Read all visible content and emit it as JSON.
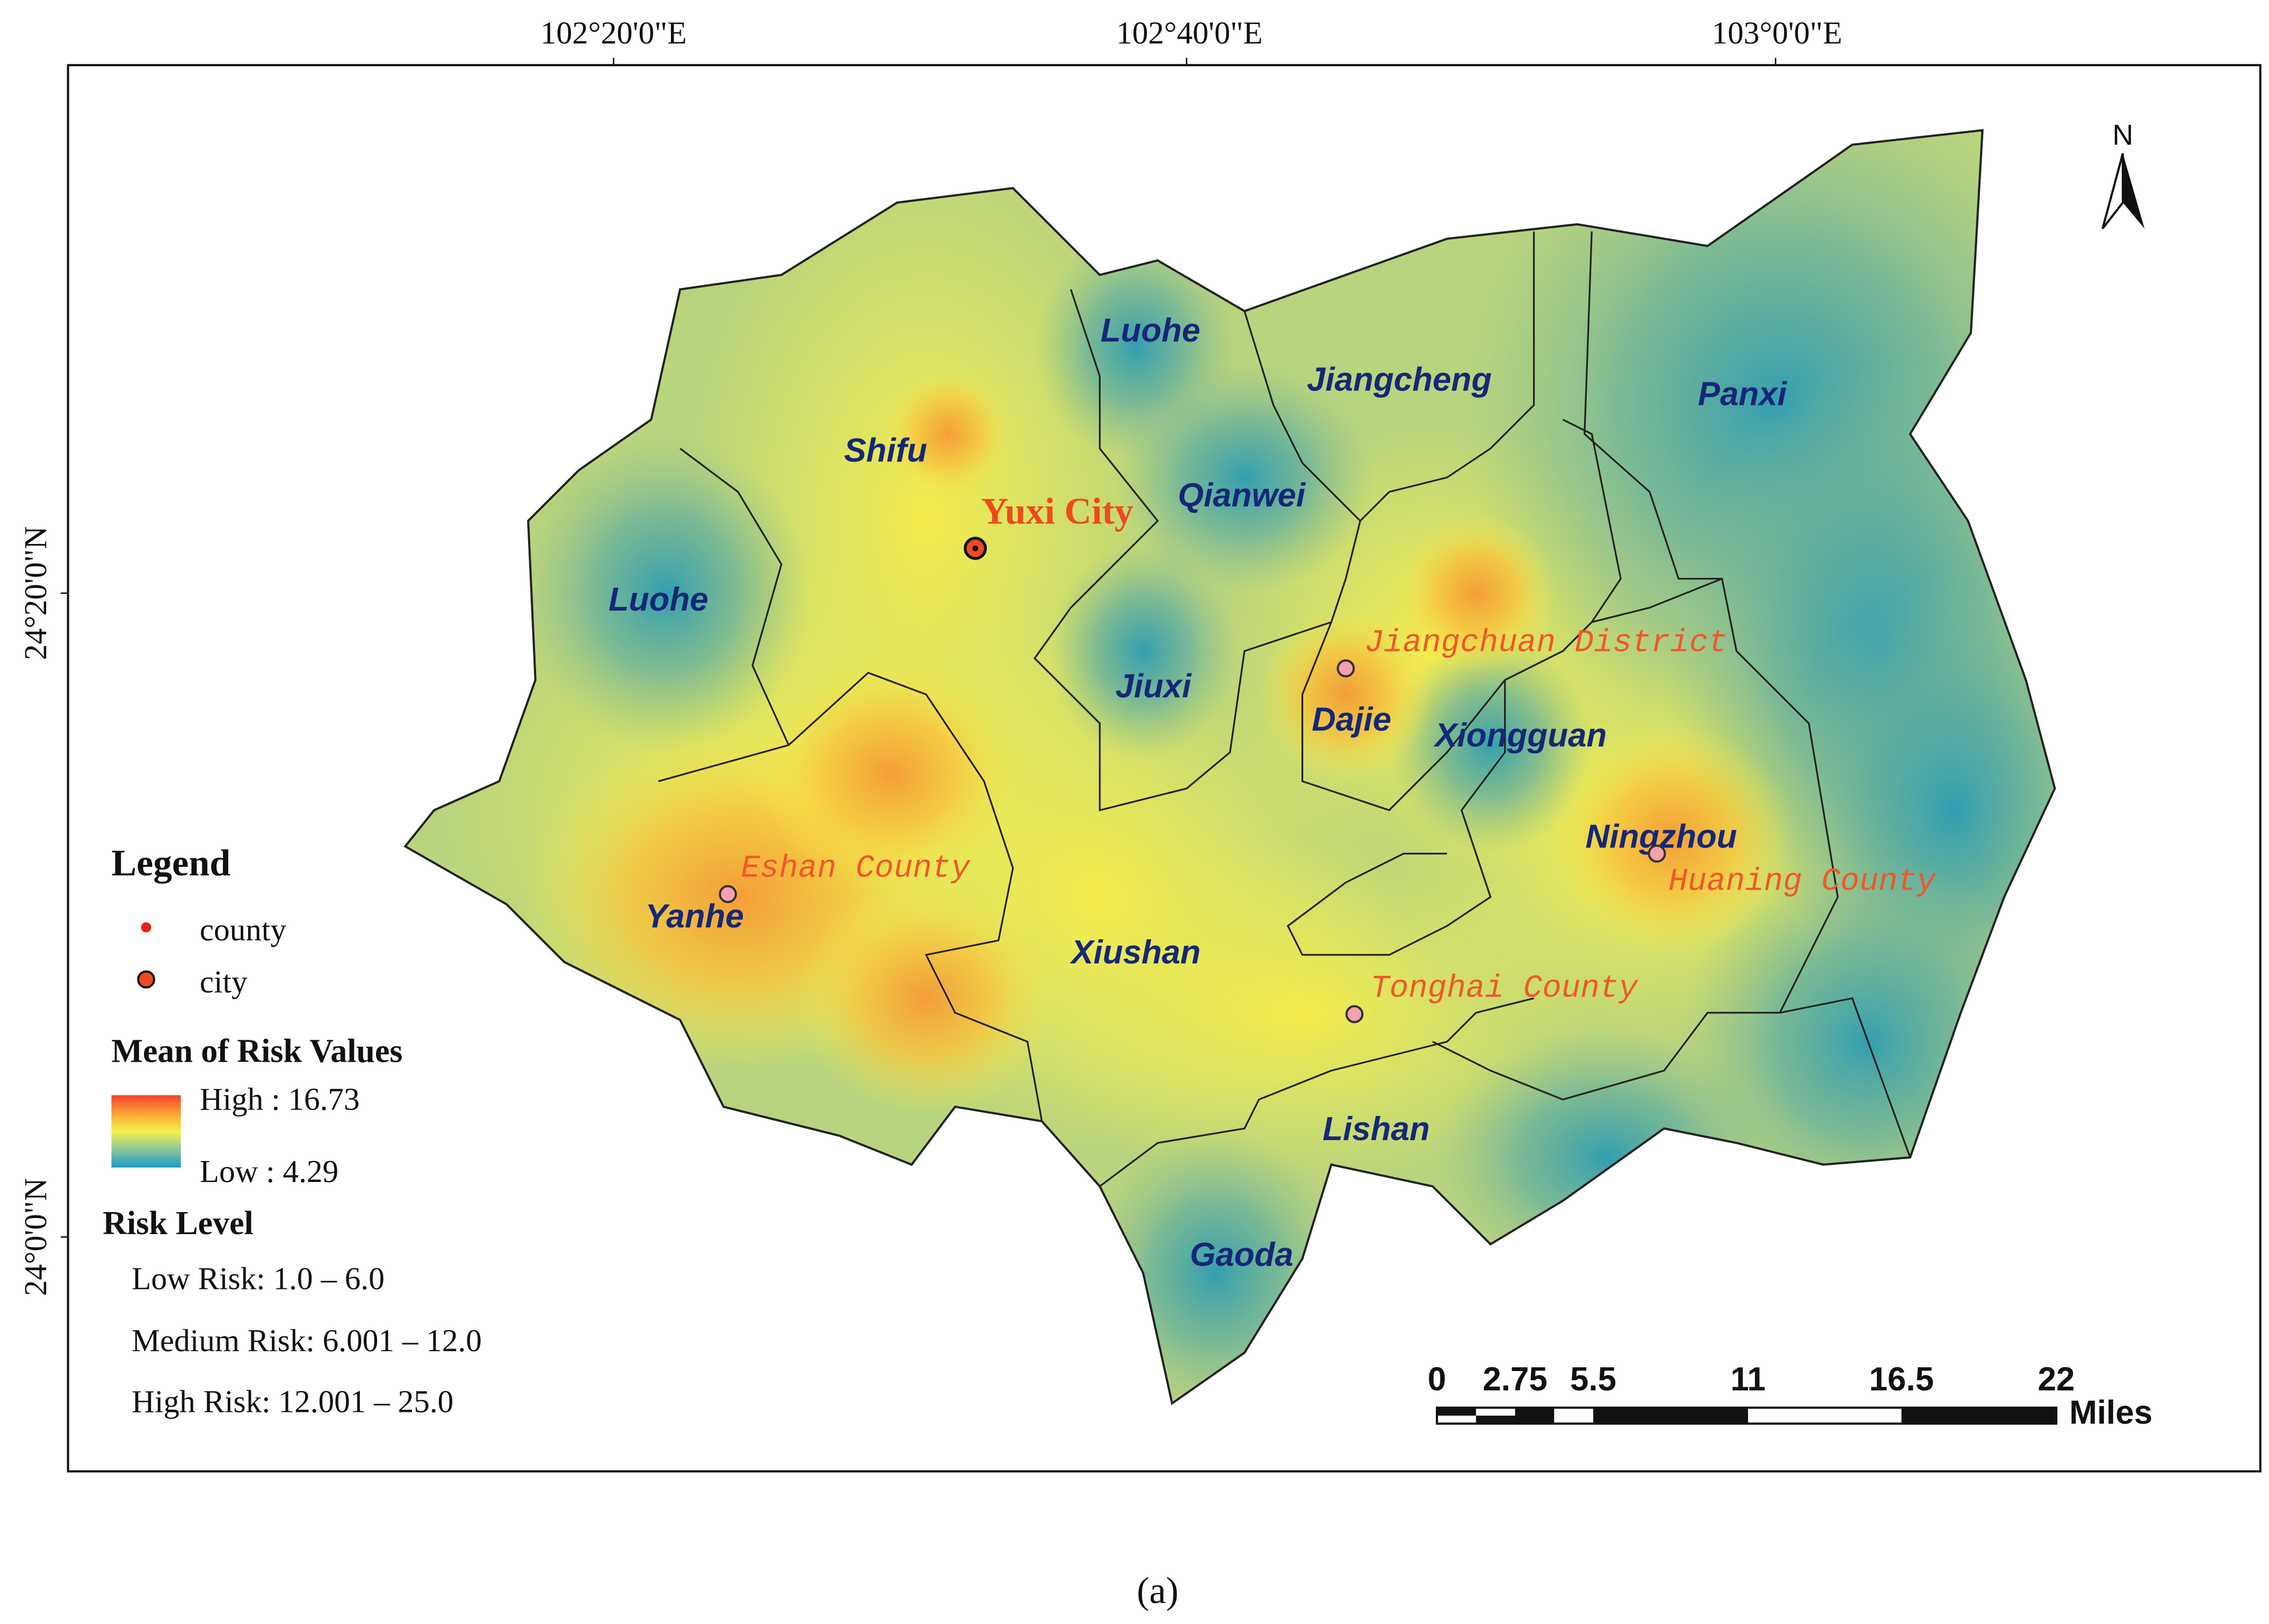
{
  "graticule": {
    "longitudes": [
      "102°20'0\"E",
      "102°40'0\"E",
      "103°0'0\"E"
    ],
    "latitudes": [
      "24°20'0\"N",
      "24°0'0\"N"
    ]
  },
  "north_arrow": "N",
  "regions": [
    "Luohe",
    "Jiangcheng",
    "Panxi",
    "Shifu",
    "Qianwei",
    "Luohe",
    "Jiuxi",
    "Dajie",
    "Xiongguan",
    "Ningzhou",
    "Yanhe",
    "Xiushan",
    "Lishan",
    "Gaoda"
  ],
  "places": {
    "city": "Yuxi City",
    "counties": [
      "Jiangchuan District",
      "Eshan County",
      "Huaning County",
      "Tonghai County"
    ]
  },
  "legend": {
    "title": "Legend",
    "symbols": [
      "county",
      "city"
    ],
    "raster_title": "Mean of Risk Values",
    "high": "High : 16.73",
    "low": "Low : 4.29",
    "risk_title": "Risk Level",
    "risk_levels": [
      "Low Risk: 1.0 – 6.0",
      "Medium Risk: 6.001 – 12.0",
      "High Risk: 12.001 – 25.0"
    ]
  },
  "scale_bar": {
    "labels": [
      "0",
      "2.75",
      "5.5",
      "11",
      "16.5",
      "22"
    ],
    "unit": "Miles"
  },
  "caption": "(a)"
}
